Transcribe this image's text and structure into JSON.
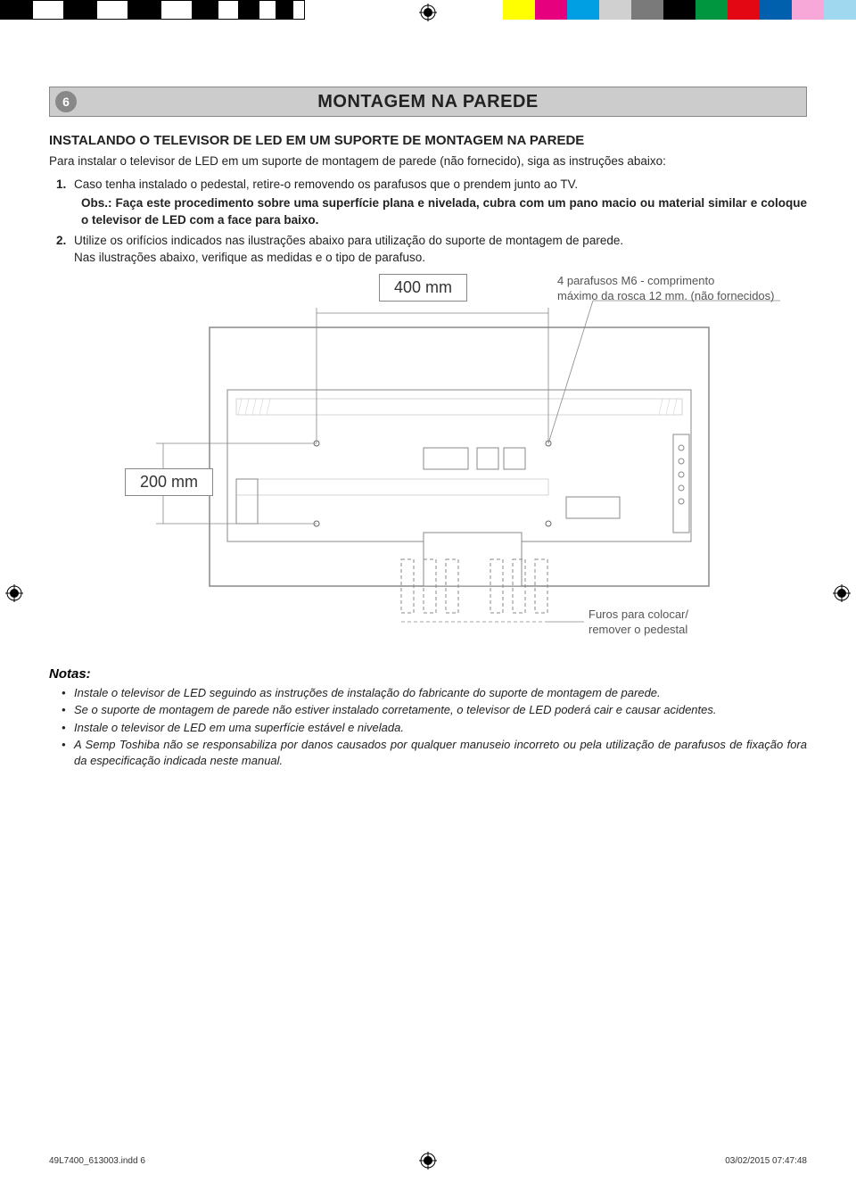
{
  "colorBar": {
    "left": [
      "#000000",
      "#ffffff",
      "#000000",
      "#ffffff",
      "#000000",
      "#ffffff",
      "#000000",
      "#ffffff",
      "#000000",
      "#ffffff",
      "#000000",
      "#ffffff"
    ],
    "leftWidths": [
      36,
      36,
      36,
      36,
      36,
      36,
      28,
      24,
      22,
      20,
      18,
      14
    ],
    "right": [
      "#ffff00",
      "#e6007e",
      "#009fe3",
      "#d0d0d0",
      "#7a7a7a",
      "#000000",
      "#009640",
      "#e30613",
      "#0060ae",
      "#f7a8d8",
      "#a0d8ef"
    ],
    "rightWidth": 36
  },
  "pageNumber": "6",
  "title": "MONTAGEM NA PAREDE",
  "subtitle": "INSTALANDO O TELEVISOR DE LED EM UM SUPORTE DE MONTAGEM NA PAREDE",
  "intro": "Para instalar o televisor de LED em um suporte de montagem de parede (não fornecido), siga as instruções abaixo:",
  "step1": "Caso tenha instalado o pedestal, retire-o removendo os parafusos que o prendem junto ao TV.",
  "obs": "Obs.:  Faça este procedimento sobre uma superfície plana e nivelada, cubra com um pano macio ou material similar e coloque o televisor de LED com a face para baixo.",
  "step2a": "Utilize os orifícios indicados nas ilustrações abaixo para utilização do suporte de montagem de parede.",
  "step2b": "Nas ilustrações abaixo, verifique as medidas e o tipo de parafuso.",
  "dim400": "400 mm",
  "dim200": "200 mm",
  "screwInfo1": "4 parafusos M6 - comprimento",
  "screwInfo2": "máximo da rosca 12 mm. (não fornecidos)",
  "holesLabel1": "Furos para colocar/",
  "holesLabel2": "remover o pedestal",
  "notasTitle": "Notas:",
  "nota1": "Instale o televisor de LED seguindo as instruções de instalação do fabricante do suporte de montagem de parede.",
  "nota2": "Se o suporte de montagem de parede não estiver instalado corretamente, o televisor de LED poderá cair e causar acidentes.",
  "nota3": "Instale o televisor de LED em uma superfície estável e nivelada.",
  "nota4": "A Semp Toshiba não se responsabiliza por danos causados por qualquer manuseio incorreto ou pela utilização de parafusos de fixação fora da especificação indicada neste manual.",
  "footerFile": "49L7400_613003.indd   6",
  "footerDate": "03/02/2015   07:47:48"
}
